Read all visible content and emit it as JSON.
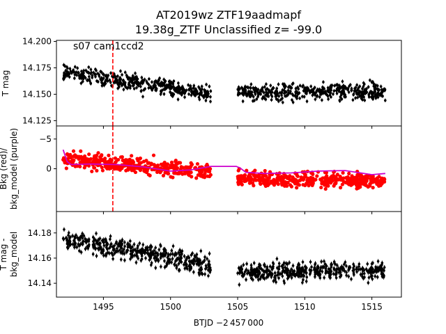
{
  "chart_data": {
    "type": "scatter",
    "title": [
      "AT2019wz  ZTF19aadmapf",
      "19.38g_ZTF Unclassified z= -99.0"
    ],
    "xlabel": "BTJD −2 457 000",
    "xlim": [
      1491.5,
      1517.2
    ],
    "x_ticks": [
      1495,
      1500,
      1505,
      1510,
      1515
    ],
    "panels": [
      {
        "name": "top",
        "ylabel": "T mag",
        "ylim": [
          14.201,
          14.12
        ],
        "y_ticks": [
          "14.125",
          "14.150",
          "14.175",
          "14.200"
        ],
        "annotation": "s07 cam1ccd2",
        "vline_x": 1495.7,
        "vline_color": "#ff0000",
        "series": [
          {
            "color": "#000000",
            "marker": "points with error bars",
            "segments": [
              {
                "x_start": 1492.0,
                "x_end": 1503.0,
                "y_start": 14.171,
                "y_end": 14.15,
                "scatter": 0.01
              },
              {
                "x_start": 1505.0,
                "x_end": 1516.0,
                "y_start": 14.152,
                "y_end": 14.153,
                "scatter": 0.01
              }
            ]
          }
        ]
      },
      {
        "name": "middle",
        "ylabel": "Bkg (red)/\nbkg_model (purple)",
        "ylim": [
          -7.2,
          7.2
        ],
        "y_ticks": [
          "−5",
          "0"
        ],
        "series": [
          {
            "name": "Bkg",
            "color": "#ff0000",
            "marker": "points",
            "segments": [
              {
                "x_start": 1492.0,
                "x_end": 1503.0,
                "y_start": -1.5,
                "y_end": 0.5,
                "scatter": 1.6
              },
              {
                "x_start": 1505.0,
                "x_end": 1516.0,
                "y_start": 1.6,
                "y_end": 2.2,
                "scatter": 1.6
              }
            ]
          },
          {
            "name": "bkg_model",
            "color": "#cc00cc",
            "marker": "line",
            "x": [
              1492.0,
              1492.3,
              1492.6,
              1494.0,
              1496.0,
              1498.0,
              1500.0,
              1501.5,
              1503.0,
              1504.9,
              1505.2,
              1505.6,
              1507.0,
              1509.0,
              1511.0,
              1513.0,
              1515.0,
              1516.0
            ],
            "y": [
              -3.2,
              -1.2,
              -0.7,
              -0.8,
              -0.7,
              -0.3,
              0.4,
              0.2,
              -0.4,
              -0.4,
              -0.1,
              0.6,
              0.8,
              0.7,
              0.4,
              0.3,
              1.0,
              0.8
            ]
          }
        ]
      },
      {
        "name": "bottom",
        "ylabel": "T mag -\nbkg_model",
        "ylim": [
          14.197,
          14.129
        ],
        "y_ticks": [
          "14.14",
          "14.16",
          "14.18"
        ],
        "series": [
          {
            "color": "#000000",
            "marker": "points with error bars",
            "segments": [
              {
                "x_start": 1492.0,
                "x_end": 1503.0,
                "y_start": 14.176,
                "y_end": 14.154,
                "scatter": 0.01
              },
              {
                "x_start": 1505.0,
                "x_end": 1516.0,
                "y_start": 14.149,
                "y_end": 14.151,
                "scatter": 0.009
              }
            ]
          }
        ]
      }
    ]
  }
}
